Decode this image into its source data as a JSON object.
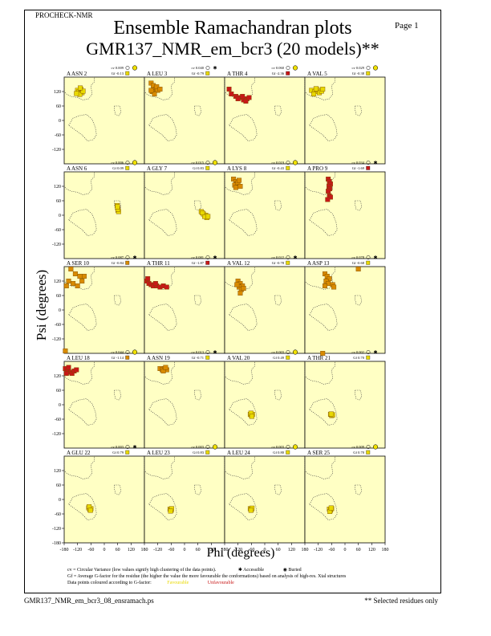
{
  "header": {
    "program": "PROCHECK-NMR",
    "page_label": "Page  1",
    "title_line1": "Ensemble Ramachandran plots",
    "title_line2": "GMR137_NMR_em_bcr3 (20 models)**"
  },
  "footer": {
    "filename": "GMR137_NMR_em_bcr3_08_ensramach.ps",
    "note": "** Selected residues only"
  },
  "legend": {
    "cv_text": "cv = Circular Variance (low values signify high clustering of the data points).",
    "accessible": "Accessible",
    "buried": "Buried",
    "gf_text": "Gf = Average G-factor for the residue (the higher the value the more favourable the conformations) based on analysis of high-res. Xtal structures",
    "colour_text": "Data points coloured according to G-factor:",
    "favourable": "Favourable",
    "unfavourable": "Unfavourable"
  },
  "colors": {
    "panel_bg": "#ffffc4",
    "favourable": "#e8d800",
    "mid": "#d88a00",
    "unfavourable": "#c81818",
    "region_line": "#444444"
  },
  "chart_data": {
    "type": "scatter",
    "xlabel": "Phi (degrees)",
    "ylabel": "Psi (degrees)",
    "xlim": [
      -180,
      180
    ],
    "ylim": [
      -180,
      180
    ],
    "x_ticks": [
      "-180",
      "-120",
      "-60",
      "0",
      "60",
      "120",
      "180"
    ],
    "x_tick_values": [
      -180,
      -120,
      -60,
      0,
      60,
      120,
      180
    ],
    "y_ticks": [
      "120",
      "60",
      "0",
      "-60",
      "-120"
    ],
    "y_tick_values": [
      120,
      60,
      0,
      -60,
      -120
    ],
    "bottom_y_ticks": [
      "120",
      "60",
      "0",
      "-60",
      "-120",
      "-180"
    ],
    "bottom_y_tick_values": [
      120,
      60,
      0,
      -60,
      -120,
      -180
    ],
    "panels": [
      {
        "label": "A ASN 2",
        "cv": "cv 0.009",
        "gf": "Gf -0.13",
        "burial": "buried",
        "gf_color": "favourable",
        "points": [
          [
            -120,
            125
          ],
          [
            -115,
            118
          ],
          [
            -105,
            130
          ],
          [
            -100,
            115
          ],
          [
            -110,
            108
          ],
          [
            -95,
            122
          ],
          [
            -125,
            112
          ],
          [
            -108,
            135
          ]
        ],
        "point_color": "favourable"
      },
      {
        "label": "A LEU 3",
        "cv": "cv 0.040",
        "gf": "Gf -0.79",
        "burial": "accessible",
        "gf_color": "favourable",
        "points": [
          [
            -150,
            155
          ],
          [
            -140,
            145
          ],
          [
            -130,
            130
          ],
          [
            -120,
            125
          ],
          [
            -145,
            120
          ],
          [
            -135,
            110
          ],
          [
            -125,
            140
          ],
          [
            -110,
            130
          ],
          [
            -150,
            125
          ]
        ],
        "point_color": "mid"
      },
      {
        "label": "A THR 4",
        "cv": "cv 0.060",
        "gf": "Gf -2.36",
        "burial": "buried",
        "gf_color": "unfavourable",
        "points": [
          [
            -160,
            130
          ],
          [
            -150,
            110
          ],
          [
            -130,
            100
          ],
          [
            -110,
            95
          ],
          [
            -95,
            85
          ],
          [
            -80,
            90
          ],
          [
            -85,
            80
          ],
          [
            -100,
            100
          ],
          [
            -120,
            90
          ],
          [
            -70,
            95
          ]
        ],
        "point_color": "unfavourable"
      },
      {
        "label": "A VAL 5",
        "cv": "cv 0.029",
        "gf": "Gf -0.38",
        "burial": "buried",
        "gf_color": "favourable",
        "points": [
          [
            -150,
            125
          ],
          [
            -135,
            120
          ],
          [
            -125,
            128
          ],
          [
            -115,
            115
          ],
          [
            -105,
            122
          ],
          [
            -140,
            110
          ],
          [
            -100,
            130
          ],
          [
            -130,
            132
          ]
        ],
        "point_color": "favourable"
      },
      {
        "label": "A ASN 6",
        "cv": "cv 0.006",
        "gf": "Gf 0.09",
        "burial": "buried",
        "gf_color": "favourable",
        "points": [
          [
            60,
            30
          ],
          [
            62,
            20
          ],
          [
            58,
            40
          ],
          [
            64,
            15
          ],
          [
            61,
            25
          ],
          [
            59,
            35
          ]
        ],
        "point_color": "favourable"
      },
      {
        "label": "A GLY 7",
        "cv": "cv 0.015",
        "gf": "Gf 0.83",
        "burial": "buried",
        "gf_color": "favourable",
        "points": [
          [
            75,
            15
          ],
          [
            85,
            5
          ],
          [
            95,
            0
          ],
          [
            100,
            -10
          ],
          [
            90,
            -5
          ],
          [
            80,
            10
          ],
          [
            105,
            -5
          ]
        ],
        "point_color": "favourable"
      },
      {
        "label": "A LYS 8",
        "cv": "cv 0.019",
        "gf": "Gf -0.43",
        "burial": "buried",
        "gf_color": "favourable",
        "points": [
          [
            -140,
            150
          ],
          [
            -130,
            140
          ],
          [
            -125,
            130
          ],
          [
            -135,
            125
          ],
          [
            -120,
            135
          ],
          [
            -110,
            120
          ],
          [
            -130,
            115
          ],
          [
            -115,
            145
          ]
        ],
        "point_color": "mid"
      },
      {
        "label": "A PRO 9",
        "cv": "cv 0.034",
        "gf": "Gf -1.69",
        "burial": "accessible",
        "gf_color": "unfavourable",
        "points": [
          [
            -75,
            150
          ],
          [
            -70,
            140
          ],
          [
            -65,
            130
          ],
          [
            -72,
            120
          ],
          [
            -68,
            110
          ],
          [
            -75,
            100
          ],
          [
            -70,
            80
          ],
          [
            -65,
            75
          ],
          [
            -78,
            65
          ]
        ],
        "point_color": "unfavourable"
      },
      {
        "label": "A SER 10",
        "cv": "cv 0.087",
        "gf": "Gf -0.84",
        "burial": "accessible",
        "gf_color": "mid",
        "points": [
          [
            -150,
            170
          ],
          [
            -130,
            150
          ],
          [
            -110,
            140
          ],
          [
            -160,
            120
          ],
          [
            -140,
            110
          ],
          [
            -120,
            100
          ],
          [
            -100,
            120
          ],
          [
            -90,
            140
          ],
          [
            -170,
            100
          ],
          [
            -175,
            -170
          ]
        ],
        "point_color": "mid"
      },
      {
        "label": "A THR 11",
        "cv": "cv 0.081",
        "gf": "Gf -1.87",
        "burial": "accessible",
        "gf_color": "unfavourable",
        "points": [
          [
            -170,
            120
          ],
          [
            -160,
            110
          ],
          [
            -150,
            105
          ],
          [
            -140,
            100
          ],
          [
            -125,
            100
          ],
          [
            -110,
            95
          ],
          [
            -95,
            100
          ],
          [
            -80,
            95
          ],
          [
            -130,
            110
          ],
          [
            -165,
            130
          ]
        ],
        "point_color": "unfavourable"
      },
      {
        "label": "A VAL 12",
        "cv": "cv 0.022",
        "gf": "Gf -0.78",
        "burial": "accessible",
        "gf_color": "favourable",
        "points": [
          [
            -120,
            120
          ],
          [
            -110,
            110
          ],
          [
            -100,
            100
          ],
          [
            -115,
            95
          ],
          [
            -105,
            85
          ],
          [
            -95,
            90
          ],
          [
            -125,
            105
          ],
          [
            -110,
            70
          ]
        ],
        "point_color": "mid"
      },
      {
        "label": "A ASP 13",
        "cv": "cv 0.078",
        "gf": "Gf -0.68",
        "burial": "accessible",
        "gf_color": "favourable",
        "points": [
          [
            -90,
            150
          ],
          [
            -80,
            140
          ],
          [
            -70,
            130
          ],
          [
            -85,
            120
          ],
          [
            -75,
            110
          ],
          [
            -90,
            100
          ],
          [
            -55,
            105
          ],
          [
            -50,
            95
          ],
          [
            -100,
            -180
          ],
          [
            60,
            170
          ]
        ],
        "point_color": "mid"
      },
      {
        "label": "A LEU 18",
        "cv": "cv 0.044",
        "gf": "Gf -1.14",
        "burial": "buried",
        "gf_color": "mid",
        "points": [
          [
            -175,
            150
          ],
          [
            -165,
            140
          ],
          [
            -160,
            155
          ],
          [
            -150,
            135
          ],
          [
            -145,
            130
          ],
          [
            -135,
            140
          ],
          [
            -125,
            145
          ],
          [
            -170,
            130
          ]
        ],
        "point_color": "unfavourable"
      },
      {
        "label": "A ASN 19",
        "cv": "cv 0.013",
        "gf": "Gf -0.71",
        "burial": "accessible",
        "gf_color": "favourable",
        "points": [
          [
            -110,
            150
          ],
          [
            -100,
            145
          ],
          [
            -90,
            150
          ],
          [
            -80,
            145
          ],
          [
            -95,
            140
          ],
          [
            -85,
            155
          ]
        ],
        "point_color": "mid"
      },
      {
        "label": "A VAL 20",
        "cv": "cv 0.003",
        "gf": "Gf 0.49",
        "burial": "buried",
        "gf_color": "favourable",
        "points": [
          [
            -65,
            -40
          ],
          [
            -60,
            -45
          ],
          [
            -55,
            -40
          ],
          [
            -62,
            -35
          ],
          [
            -58,
            -48
          ]
        ],
        "point_color": "favourable"
      },
      {
        "label": "A THR 21",
        "cv": "cv 0.002",
        "gf": "Gf 0.70",
        "burial": "accessible",
        "gf_color": "favourable",
        "points": [
          [
            -65,
            -40
          ],
          [
            -60,
            -45
          ],
          [
            -55,
            -42
          ],
          [
            -62,
            -38
          ]
        ],
        "point_color": "favourable"
      },
      {
        "label": "A GLU 22",
        "cv": "cv 0.003",
        "gf": "Gf 0.79",
        "burial": "accessible",
        "gf_color": "favourable",
        "points": [
          [
            -70,
            -35
          ],
          [
            -65,
            -42
          ],
          [
            -60,
            -38
          ],
          [
            -68,
            -30
          ],
          [
            -62,
            -45
          ]
        ],
        "point_color": "favourable"
      },
      {
        "label": "A LEU 23",
        "cv": "cv 0.003",
        "gf": "Gf 0.83",
        "burial": "buried",
        "gf_color": "favourable",
        "points": [
          [
            -65,
            -40
          ],
          [
            -60,
            -45
          ],
          [
            -58,
            -38
          ],
          [
            -63,
            -48
          ]
        ],
        "point_color": "favourable"
      },
      {
        "label": "A LEU 24",
        "cv": "cv 0.003",
        "gf": "Gf 0.80",
        "burial": "buried",
        "gf_color": "favourable",
        "points": [
          [
            -65,
            -38
          ],
          [
            -60,
            -42
          ],
          [
            -57,
            -36
          ],
          [
            -62,
            -45
          ]
        ],
        "point_color": "favourable"
      },
      {
        "label": "A SER 25",
        "cv": "cv 0.009",
        "gf": "Gf 0.70",
        "burial": "buried",
        "gf_color": "favourable",
        "points": [
          [
            -70,
            -40
          ],
          [
            -65,
            -45
          ],
          [
            -60,
            -38
          ],
          [
            -68,
            -50
          ],
          [
            -62,
            -35
          ]
        ],
        "point_color": "favourable"
      }
    ]
  }
}
